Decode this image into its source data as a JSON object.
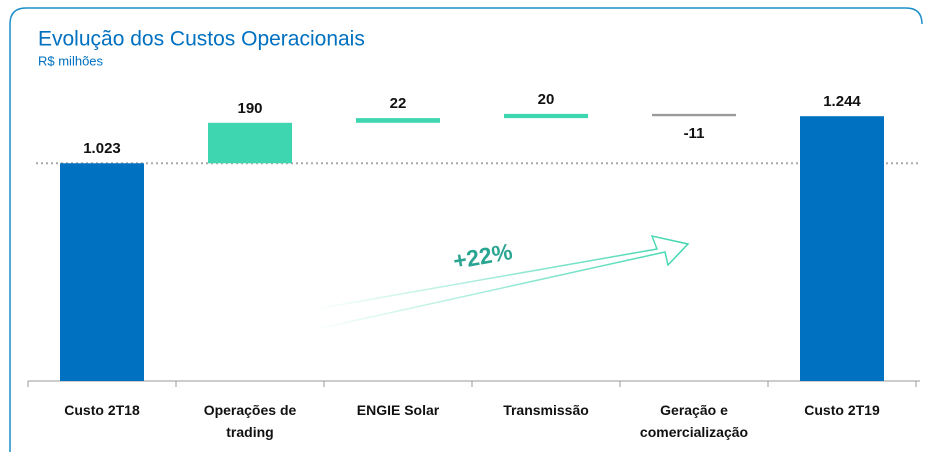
{
  "chart_data": {
    "type": "waterfall",
    "title": "Evolução dos Custos Operacionais",
    "subtitle": "R$ milhões",
    "categories": [
      "Custo 2T18",
      "Operações de trading",
      "ENGIE Solar",
      "Transmissão",
      "Geração e comercialização",
      "Custo 2T19"
    ],
    "values": [
      1023,
      190,
      22,
      20,
      -11,
      1244
    ],
    "value_labels": [
      "1.023",
      "190",
      "22",
      "20",
      "-11",
      "1.244"
    ],
    "colors": {
      "total": "#0070c0",
      "increase": "#3dd6b0",
      "decrease": "#9a9a9a"
    },
    "ylim": [
      0,
      1400
    ],
    "annotation": "+22%"
  }
}
